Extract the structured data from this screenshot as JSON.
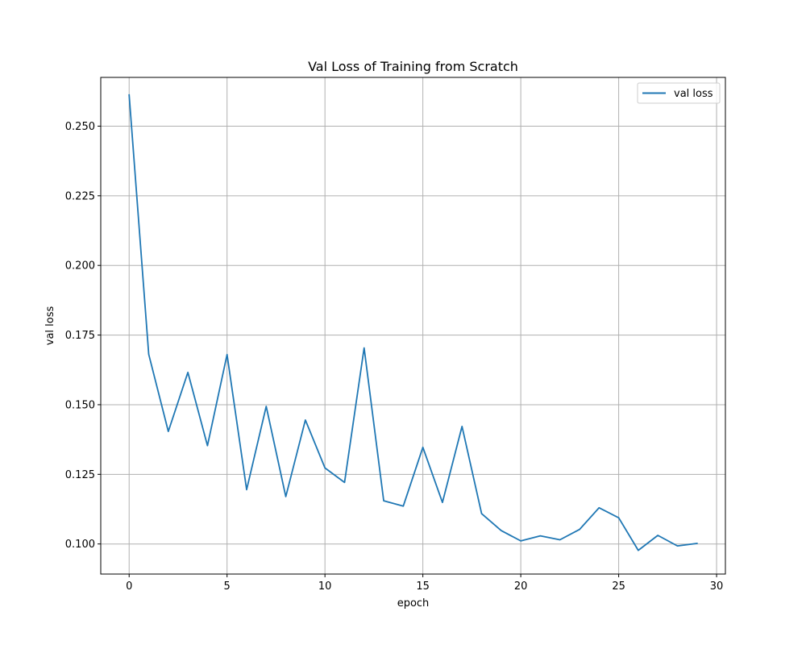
{
  "chart_data": {
    "type": "line",
    "title": "Val Loss of Training from Scratch",
    "xlabel": "epoch",
    "ylabel": "val loss",
    "xlim": [
      -1.45,
      30.45
    ],
    "ylim": [
      0.0892,
      0.2675
    ],
    "xticks": [
      0,
      5,
      10,
      15,
      20,
      25,
      30
    ],
    "xtick_labels": [
      "0",
      "5",
      "10",
      "15",
      "20",
      "25",
      "30"
    ],
    "yticks": [
      0.1,
      0.125,
      0.15,
      0.175,
      0.2,
      0.225,
      0.25
    ],
    "ytick_labels": [
      "0.100",
      "0.125",
      "0.150",
      "0.175",
      "0.200",
      "0.225",
      "0.250"
    ],
    "grid": true,
    "legend_position": "top-right",
    "series": [
      {
        "name": "val loss",
        "color": "#1f77b4",
        "x": [
          0,
          1,
          2,
          3,
          4,
          5,
          6,
          7,
          8,
          9,
          10,
          11,
          12,
          13,
          14,
          15,
          16,
          17,
          18,
          19,
          20,
          21,
          22,
          23,
          24,
          25,
          26,
          27,
          28,
          29
        ],
        "y": [
          0.2612,
          0.1681,
          0.1404,
          0.1616,
          0.1353,
          0.168,
          0.1195,
          0.1494,
          0.117,
          0.1445,
          0.1273,
          0.1221,
          0.1704,
          0.1155,
          0.1136,
          0.1347,
          0.1149,
          0.1422,
          0.1109,
          0.1048,
          0.1011,
          0.1029,
          0.1015,
          0.1052,
          0.113,
          0.1094,
          0.0977,
          0.1031,
          0.0993,
          0.1002
        ]
      }
    ]
  }
}
